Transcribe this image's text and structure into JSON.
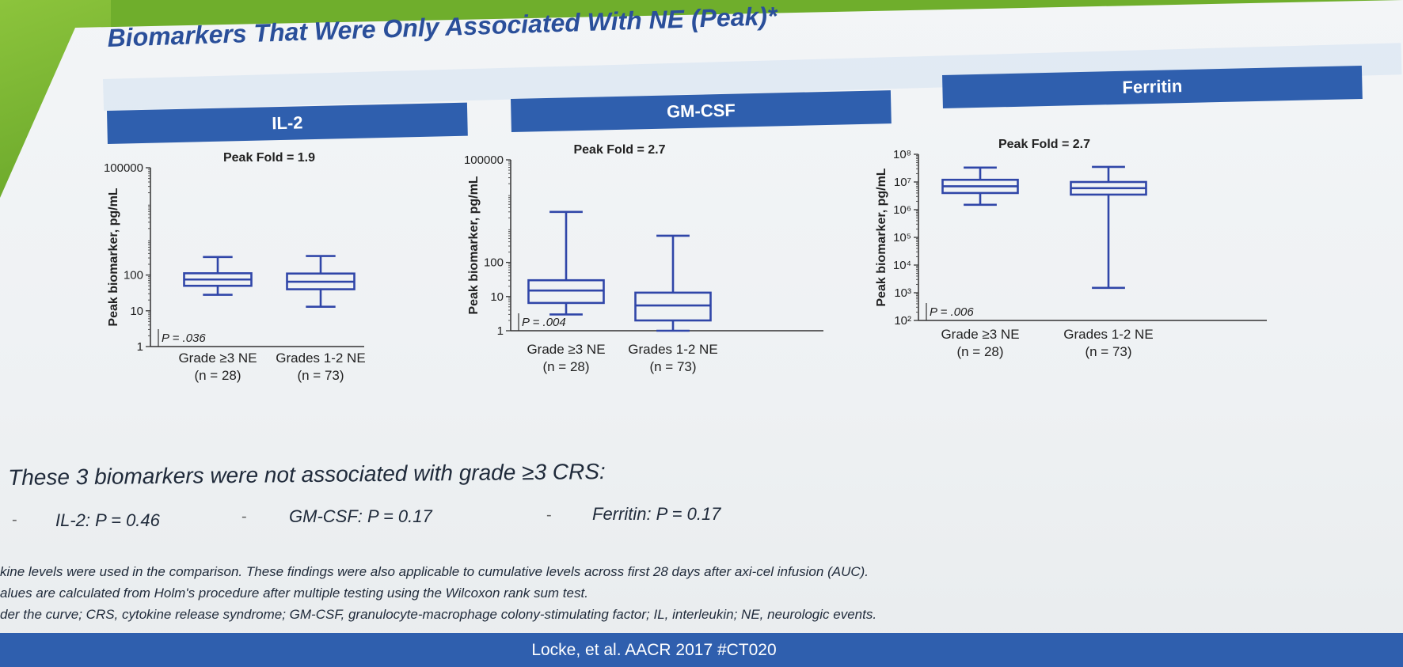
{
  "slide": {
    "title": "Biomarkers That Were Only Associated With NE (Peak)*",
    "statement": "These 3 biomarkers were not associated with grade ≥3 CRS:",
    "p_lines": [
      "IL-2: P = 0.46",
      "GM-CSF: P = 0.17",
      "Ferritin: P = 0.17"
    ],
    "footnotes": [
      "kine levels were used in the comparison. These findings were also applicable to cumulative levels across first 28 days after axi-cel infusion (AUC).",
      "alues are calculated from Holm's procedure after multiple testing using the Wilcoxon rank sum test.",
      "der the curve; CRS, cytokine release syndrome; GM-CSF, granulocyte-macrophage colony-stimulating factor; IL, interleukin; NE, neurologic events."
    ],
    "citation": "Locke, et al. AACR 2017 #CT020"
  },
  "chart_data": [
    {
      "type": "boxplot",
      "title": "IL-2",
      "subtitle": "Peak Fold = 1.9",
      "ylabel": "Peak biomarker, pg/mL",
      "yscale": "log",
      "ylim": [
        1,
        100000
      ],
      "ytick_labels": [
        "1",
        "10",
        "100",
        "100000"
      ],
      "ytick_values": [
        1,
        10,
        100,
        100000
      ],
      "p_value": "P = .036",
      "categories": [
        {
          "label": "Grade ≥3 NE",
          "n": "(n = 28)"
        },
        {
          "label": "Grades 1-2 NE",
          "n": "(n = 73)"
        }
      ],
      "series": [
        {
          "min": 28,
          "q1": 50,
          "median": 75,
          "q3": 112,
          "max": 320
        },
        {
          "min": 13,
          "q1": 40,
          "median": 65,
          "q3": 110,
          "max": 340
        }
      ]
    },
    {
      "type": "boxplot",
      "title": "GM-CSF",
      "subtitle": "Peak Fold = 2.7",
      "ylabel": "Peak biomarker, pg/mL",
      "yscale": "log",
      "ylim": [
        1,
        100000
      ],
      "ytick_labels": [
        "1",
        "10",
        "100",
        "100000"
      ],
      "ytick_values": [
        1,
        10,
        100,
        100000
      ],
      "p_value": "P = .004",
      "categories": [
        {
          "label": "Grade ≥3 NE",
          "n": "(n = 28)"
        },
        {
          "label": "Grades 1-2 NE",
          "n": "(n = 73)"
        }
      ],
      "series": [
        {
          "min": 3,
          "q1": 6.5,
          "median": 15,
          "q3": 30,
          "max": 3000
        },
        {
          "min": 0.9,
          "q1": 2,
          "median": 5.5,
          "q3": 13,
          "max": 600
        }
      ]
    },
    {
      "type": "boxplot",
      "title": "Ferritin",
      "subtitle": "Peak Fold = 2.7",
      "ylabel": "Peak biomarker, pg/mL",
      "yscale": "log",
      "ylim": [
        100,
        100000000
      ],
      "ytick_labels": [
        "10²",
        "10³",
        "10⁴",
        "10⁵",
        "10⁶",
        "10⁷",
        "10⁸"
      ],
      "ytick_values": [
        100,
        1000,
        10000,
        100000,
        1000000,
        10000000,
        100000000
      ],
      "p_value": "P = .006",
      "categories": [
        {
          "label": "Grade ≥3 NE",
          "n": "(n = 28)"
        },
        {
          "label": "Grades 1-2 NE",
          "n": "(n = 73)"
        }
      ],
      "series": [
        {
          "min": 1500000,
          "q1": 4000000,
          "median": 7000000,
          "q3": 12000000,
          "max": 33000000
        },
        {
          "min": 1500,
          "q1": 3500000,
          "median": 6000000,
          "q3": 10000000,
          "max": 35000000
        }
      ]
    }
  ],
  "colors": {
    "header": "#2f5fae",
    "plot": "#3046a8",
    "title": "#2a4f9a"
  }
}
